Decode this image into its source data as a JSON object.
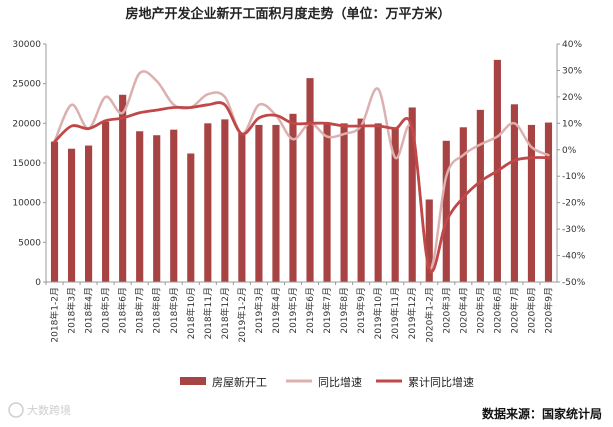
{
  "chart_data": {
    "type": "bar",
    "title": "房地产开发企业新开工面积月度走势（单位：万平方米）",
    "categories": [
      "2018年1-2月",
      "2018年3月",
      "2018年4月",
      "2018年5月",
      "2018年6月",
      "2018年7月",
      "2018年8月",
      "2018年9月",
      "2018年10月",
      "2018年11月",
      "2018年12月",
      "2019年1-2月",
      "2019年3月",
      "2019年4月",
      "2019年5月",
      "2019年6月",
      "2019年7月",
      "2019年8月",
      "2019年9月",
      "2019年10月",
      "2019年11月",
      "2019年12月",
      "2020年1-2月",
      "2020年3月",
      "2020年4月",
      "2020年5月",
      "2020年6月",
      "2020年7月",
      "2020年8月",
      "2020年9月"
    ],
    "series": [
      {
        "name": "房屋新开工",
        "type": "bar",
        "axis": "left",
        "color": "#A84343",
        "values": [
          17700,
          16800,
          17200,
          20200,
          23600,
          19000,
          18500,
          19200,
          16200,
          20000,
          20500,
          18800,
          19800,
          19800,
          21200,
          25700,
          20100,
          20000,
          20600,
          20000,
          19500,
          22000,
          10400,
          17800,
          19500,
          21700,
          28000,
          22400,
          19800,
          20100
        ]
      },
      {
        "name": "同比增速",
        "type": "line",
        "axis": "right",
        "color": "#DDB0B0",
        "values": [
          3,
          17,
          8,
          20,
          14,
          29,
          26,
          17,
          16,
          21,
          20,
          6,
          17,
          13,
          4,
          10,
          5,
          6,
          9,
          23,
          -3,
          8,
          -45,
          -10,
          -2,
          2,
          5,
          10,
          1,
          -2
        ]
      },
      {
        "name": "累计同比增速",
        "type": "line",
        "axis": "right",
        "color": "#C04848",
        "values": [
          3,
          9,
          8,
          11,
          12,
          14,
          15,
          16,
          16,
          17,
          17,
          6,
          12,
          13,
          10,
          10,
          10,
          9,
          9,
          9,
          8,
          8,
          -45,
          -27,
          -18,
          -12,
          -8,
          -4,
          -3,
          -3
        ]
      }
    ],
    "yleft": {
      "min": 0,
      "max": 30000,
      "ticks": [
        "0",
        "5000",
        "10000",
        "15000",
        "20000",
        "25000",
        "30000"
      ]
    },
    "yright": {
      "min": -50,
      "max": 40,
      "ticks": [
        "-50%",
        "-40%",
        "-30%",
        "-20%",
        "-10%",
        "0%",
        "10%",
        "20%",
        "30%",
        "40%"
      ]
    },
    "grid": false,
    "legend": "bottom"
  },
  "source": "数据来源：国家统计局",
  "watermark": "大数跨境"
}
